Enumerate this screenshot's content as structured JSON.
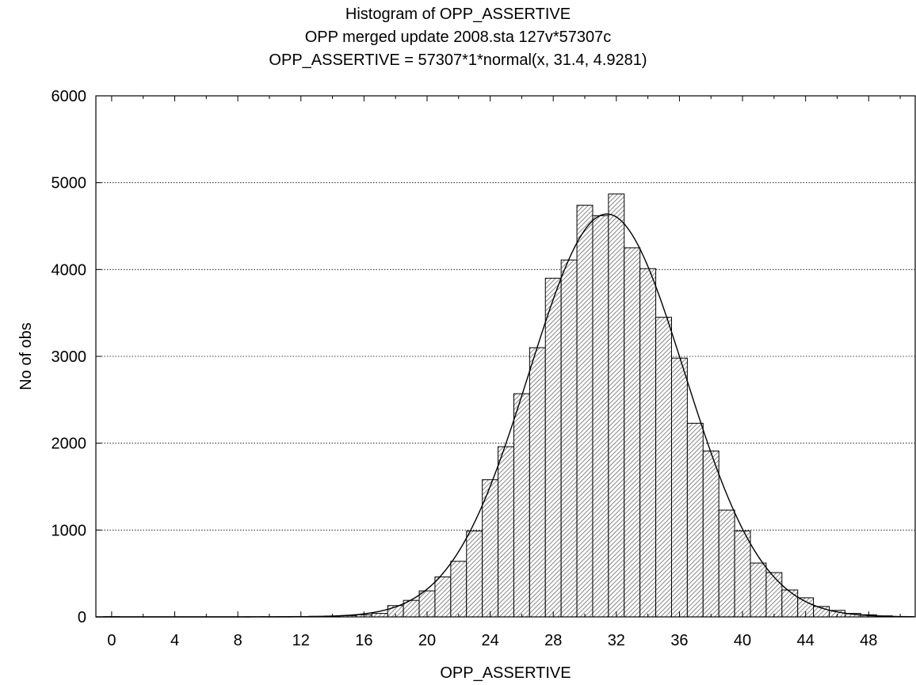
{
  "chart_data": {
    "type": "bar",
    "title": "Histogram of OPP_ASSERTIVE",
    "subtitle": "OPP merged update 2008.sta 127v*57307c",
    "fit_label": "OPP_ASSERTIVE = 57307*1*normal(x, 31.4, 4.9281)",
    "xlabel": "OPP_ASSERTIVE",
    "ylabel": "No of obs",
    "xlim": [
      -1,
      51
    ],
    "ylim": [
      0,
      6000
    ],
    "x_ticks": [
      0,
      4,
      8,
      12,
      16,
      20,
      24,
      28,
      32,
      36,
      40,
      44,
      48
    ],
    "y_ticks": [
      0,
      1000,
      2000,
      3000,
      4000,
      5000,
      6000
    ],
    "grid": "horizontal dotted",
    "bin_width": 1,
    "bins": [
      0,
      1,
      2,
      3,
      4,
      5,
      6,
      7,
      8,
      9,
      10,
      11,
      12,
      13,
      14,
      15,
      16,
      17,
      18,
      19,
      20,
      21,
      22,
      23,
      24,
      25,
      26,
      27,
      28,
      29,
      30,
      31,
      32,
      33,
      34,
      35,
      36,
      37,
      38,
      39,
      40,
      41,
      42,
      43,
      44,
      45,
      46,
      47,
      48,
      49,
      50
    ],
    "values": [
      3,
      1,
      1,
      1,
      1,
      1,
      1,
      1,
      1,
      2,
      3,
      4,
      5,
      7,
      10,
      15,
      25,
      40,
      130,
      190,
      300,
      460,
      640,
      990,
      1580,
      1960,
      2570,
      3100,
      3900,
      4110,
      4740,
      4620,
      4870,
      4250,
      4010,
      3450,
      2980,
      2230,
      1910,
      1230,
      990,
      620,
      510,
      310,
      220,
      120,
      75,
      40,
      25,
      12,
      5
    ],
    "fit": {
      "type": "normal",
      "n": 57307,
      "mean": 31.4,
      "sd": 4.9281
    }
  }
}
